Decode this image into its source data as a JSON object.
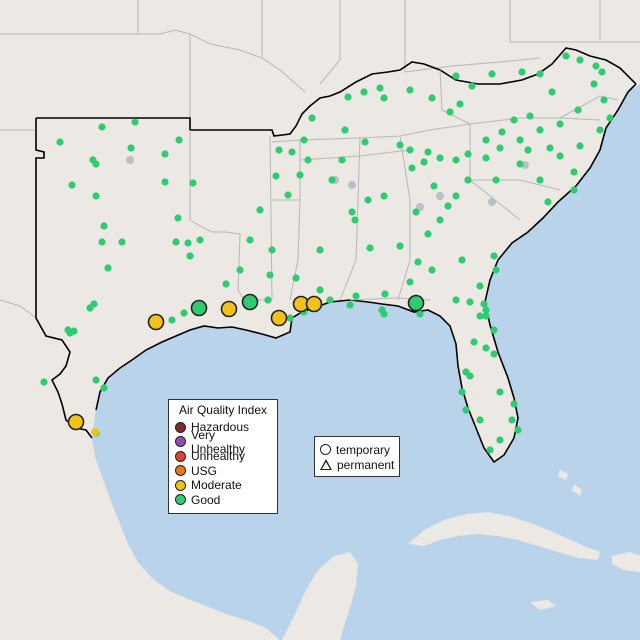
{
  "legend": {
    "title": "Air Quality Index",
    "categories": [
      {
        "label": "Hazardous",
        "color": "#7e2a2a"
      },
      {
        "label": "Very Unhealthy",
        "color": "#8e4fb0"
      },
      {
        "label": "Unhealthy",
        "color": "#e0452b"
      },
      {
        "label": "USG",
        "color": "#e8761c"
      },
      {
        "label": "Moderate",
        "color": "#f3c21a"
      },
      {
        "label": "Good",
        "color": "#2ecc71"
      }
    ]
  },
  "monitor_type_legend": {
    "temporary": "temporary",
    "permanent": "permanent"
  },
  "colors": {
    "water": "#b9d3ea",
    "land": "#ece8e3",
    "region_outline": "#000000",
    "state_border": "#b8b8b8",
    "inactive_site": "#b8c0c8"
  }
}
